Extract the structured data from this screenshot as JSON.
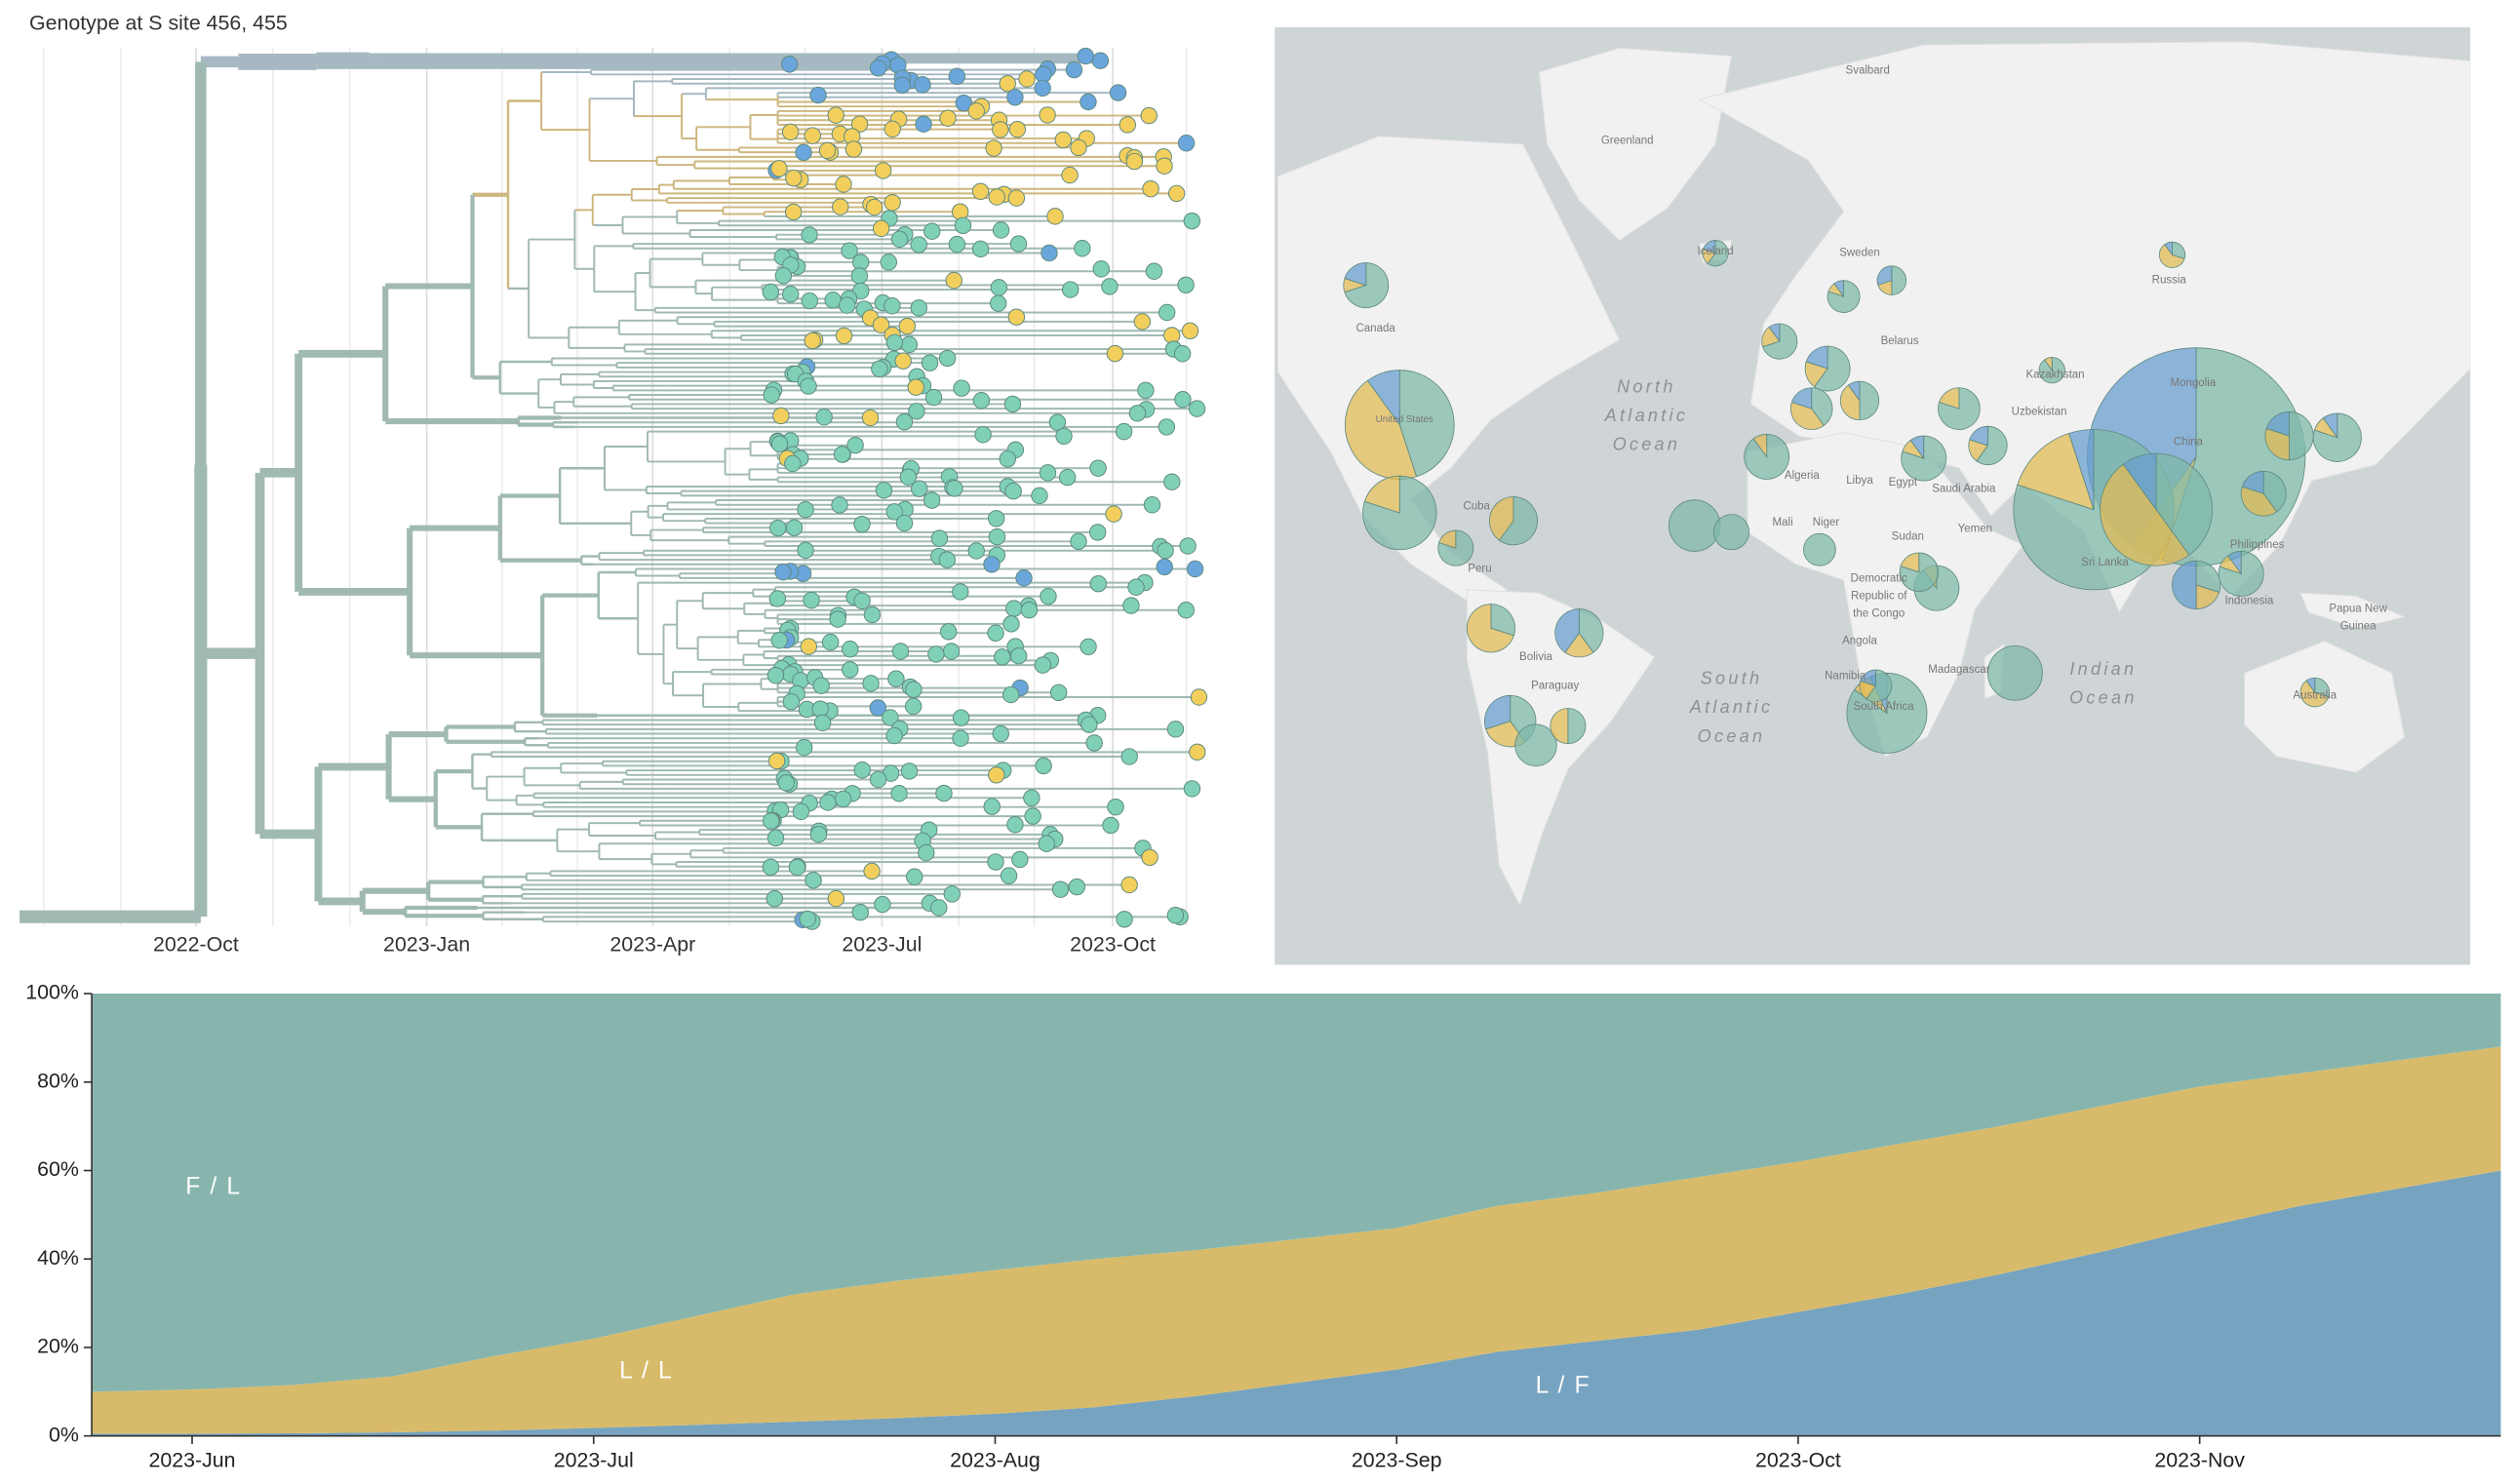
{
  "header": {
    "title": "Genotype at S site 456, 455"
  },
  "tree": {
    "x_tick_labels": [
      "2022-Oct",
      "2023-Jan",
      "2023-Apr",
      "2023-Jul",
      "2023-Oct"
    ]
  },
  "map": {
    "labels": [
      "Svalbard",
      "Greenland",
      "Iceland",
      "Sweden",
      "Russia",
      "Canada",
      "North",
      "Atlantic",
      "Ocean",
      "United States",
      "Belarus",
      "Kazakhstan",
      "Mongolia",
      "Uzbekistan",
      "China",
      "Libya",
      "Algeria",
      "Mali",
      "Niger",
      "Egypt",
      "Sudan",
      "Cuba",
      "Yemen",
      "Saudi Arabia",
      "Democratic",
      "Republic of",
      "the Congo",
      "Angola",
      "South",
      "Atlantic",
      "Ocean",
      "Indian",
      "Ocean",
      "Madagascar",
      "Namibia",
      "South Africa",
      "Sri Lanka",
      "Philippines",
      "Indonesia",
      "Papua New",
      "Guinea",
      "Australia",
      "Peru",
      "Bolivia",
      "Paraguay"
    ]
  },
  "chart_data": {
    "type": "area",
    "stacked": true,
    "categories": [
      null,
      "2023-Jun",
      null,
      null,
      null,
      "2023-Jul",
      null,
      null,
      null,
      "2023-Aug",
      null,
      null,
      null,
      "2023-Sep",
      null,
      null,
      null,
      "2023-Oct",
      null,
      null,
      null,
      "2023-Nov",
      null,
      null,
      null
    ],
    "series": [
      {
        "name": "L / F",
        "color": "#76a3c0",
        "values": [
          0.5,
          0.5,
          0.6,
          0.8,
          1.2,
          1.8,
          2.5,
          3.2,
          4,
          5,
          6.5,
          9,
          12,
          15,
          19,
          21.5,
          24,
          28,
          32,
          36.5,
          41.5,
          47,
          52,
          56,
          60
        ]
      },
      {
        "name": "L / L",
        "color": "#d8bb6a",
        "values": [
          9.5,
          10,
          10.9,
          12.7,
          16.8,
          20.2,
          24.5,
          28.8,
          31,
          32.5,
          33.5,
          33,
          32.5,
          32,
          33,
          33.5,
          34.5,
          34,
          34,
          33.5,
          33,
          32,
          30,
          29,
          28
        ]
      },
      {
        "name": "F / L",
        "color": "#87b5ad",
        "values": [
          90,
          89.5,
          88.5,
          86.5,
          82,
          78,
          73,
          68,
          65,
          62.5,
          60,
          58,
          55.5,
          53,
          48,
          45,
          41.5,
          38,
          34,
          30,
          25.5,
          21,
          18,
          15,
          12
        ]
      }
    ],
    "ylim": [
      0,
      100
    ],
    "yticks": [
      {
        "value": 0,
        "label": "0%"
      },
      {
        "value": 20,
        "label": "20%"
      },
      {
        "value": 40,
        "label": "40%"
      },
      {
        "value": 60,
        "label": "60%"
      },
      {
        "value": 80,
        "label": "80%"
      },
      {
        "value": 100,
        "label": "100%"
      }
    ]
  }
}
